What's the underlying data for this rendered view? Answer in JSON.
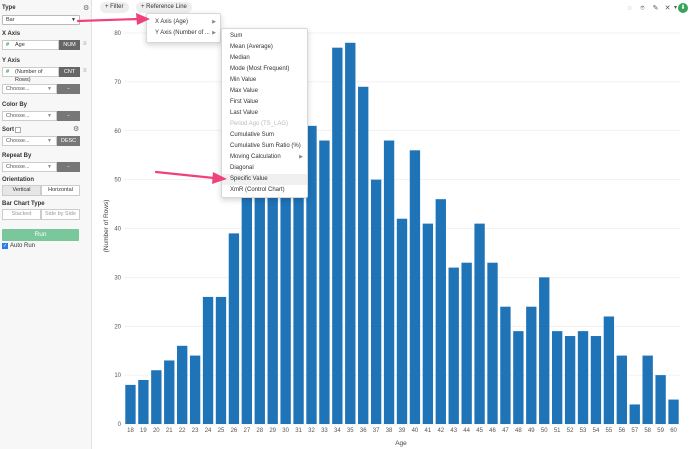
{
  "sidebar": {
    "type_title": "Type",
    "type_value": "Bar",
    "x_axis_title": "X Axis",
    "x_field": "Age",
    "x_field_tag": "NUM",
    "y_axis_title": "Y Axis",
    "y_field": "(Number of Rows)",
    "y_field_tag": "CNT",
    "choose_placeholder": "Choose...",
    "dash": "-",
    "color_by_title": "Color By",
    "sort_title": "Sort",
    "sort_order": "DESC",
    "repeat_by_title": "Repeat By",
    "orientation_title": "Orientation",
    "orientation_vertical": "Vertical",
    "orientation_horizontal": "Horizontal",
    "bar_chart_type_title": "Bar Chart Type",
    "stacked": "Stacked",
    "side_by_side": "Side by Side",
    "run_label": "Run",
    "auto_run_label": "Auto Run"
  },
  "toolbar": {
    "filter_label": "+ Filter",
    "reference_line_label": "+ Reference Line",
    "icons": [
      "comment-icon",
      "pin-icon",
      "edit-icon",
      "close-icon",
      "expand-icon",
      "export-icon"
    ]
  },
  "reference_menu": {
    "items": [
      {
        "label": "X Axis (Age)"
      },
      {
        "label": "Y Axis (Number of ..."
      }
    ]
  },
  "aggregation_menu": {
    "items": [
      {
        "label": "Sum",
        "disabled": false
      },
      {
        "label": "Mean (Average)",
        "disabled": false
      },
      {
        "label": "Median",
        "disabled": false
      },
      {
        "label": "Mode (Most Frequent)",
        "disabled": false
      },
      {
        "label": "Min Value",
        "disabled": false
      },
      {
        "label": "Max Value",
        "disabled": false
      },
      {
        "label": "First Value",
        "disabled": false
      },
      {
        "label": "Last Value",
        "disabled": false
      },
      {
        "label": "Period Ago (TS_LAG)",
        "disabled": true
      },
      {
        "label": "Cumulative Sum",
        "disabled": false
      },
      {
        "label": "Cumulative Sum Ratio (%)",
        "disabled": false
      },
      {
        "label": "Moving Calculation",
        "disabled": false,
        "submenu": true
      },
      {
        "label": "Diagonal",
        "disabled": false
      },
      {
        "label": "Specific Value",
        "disabled": false,
        "highlighted": true
      },
      {
        "label": "XmR (Control Chart)",
        "disabled": false
      }
    ]
  },
  "colors": {
    "bar": "#1f73b7",
    "run": "#79c79a",
    "arrow": "#f0427a"
  },
  "chart_data": {
    "type": "bar",
    "xlabel": "Age",
    "ylabel": "(Number of Rows)",
    "ylim": [
      0,
      80
    ],
    "yticks": [
      0,
      10,
      20,
      30,
      40,
      50,
      60,
      70,
      80
    ],
    "categories": [
      "18",
      "19",
      "20",
      "21",
      "22",
      "23",
      "24",
      "25",
      "26",
      "27",
      "28",
      "29",
      "30",
      "31",
      "32",
      "33",
      "34",
      "35",
      "36",
      "37",
      "38",
      "39",
      "40",
      "41",
      "42",
      "43",
      "44",
      "45",
      "46",
      "47",
      "48",
      "49",
      "50",
      "51",
      "52",
      "53",
      "54",
      "55",
      "56",
      "57",
      "58",
      "59",
      "60"
    ],
    "values": [
      8,
      9,
      11,
      13,
      16,
      14,
      26,
      26,
      39,
      47,
      55,
      47,
      48,
      53,
      61,
      58,
      77,
      78,
      69,
      50,
      58,
      42,
      56,
      41,
      46,
      32,
      33,
      41,
      33,
      24,
      19,
      24,
      30,
      19,
      18,
      19,
      18,
      22,
      14,
      4,
      14,
      10,
      5
    ],
    "grid": true
  }
}
